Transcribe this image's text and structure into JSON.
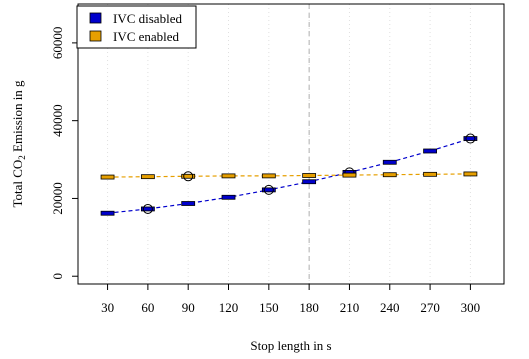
{
  "chart_data": {
    "type": "line",
    "title": "",
    "xlabel": "Stop length in s",
    "ylabel": {
      "prefix": "Total CO",
      "subscript": "2",
      "suffix": " Emission in g"
    },
    "x": [
      30,
      60,
      90,
      120,
      150,
      180,
      210,
      240,
      270,
      300
    ],
    "xlim": [
      8,
      325
    ],
    "ylim": [
      -2000,
      70000
    ],
    "yticks": [
      0,
      20000,
      40000,
      60000
    ],
    "grid": "vertical dotted",
    "reference_line": {
      "x": 180,
      "style": "dashed",
      "color": "#b0b0b0"
    },
    "legend": {
      "placement": "top-left"
    },
    "series": [
      {
        "name": "IVC disabled",
        "color": "#0000cc",
        "values": [
          16200,
          17300,
          18700,
          20300,
          22200,
          24300,
          26700,
          29300,
          32200,
          35400
        ],
        "circle_markers": [
          60,
          150,
          210,
          300
        ]
      },
      {
        "name": "IVC enabled",
        "color": "#e69f00",
        "values": [
          25500,
          25600,
          25700,
          25800,
          25800,
          25900,
          26000,
          26100,
          26200,
          26300
        ],
        "circle_markers": [
          90
        ]
      }
    ]
  }
}
